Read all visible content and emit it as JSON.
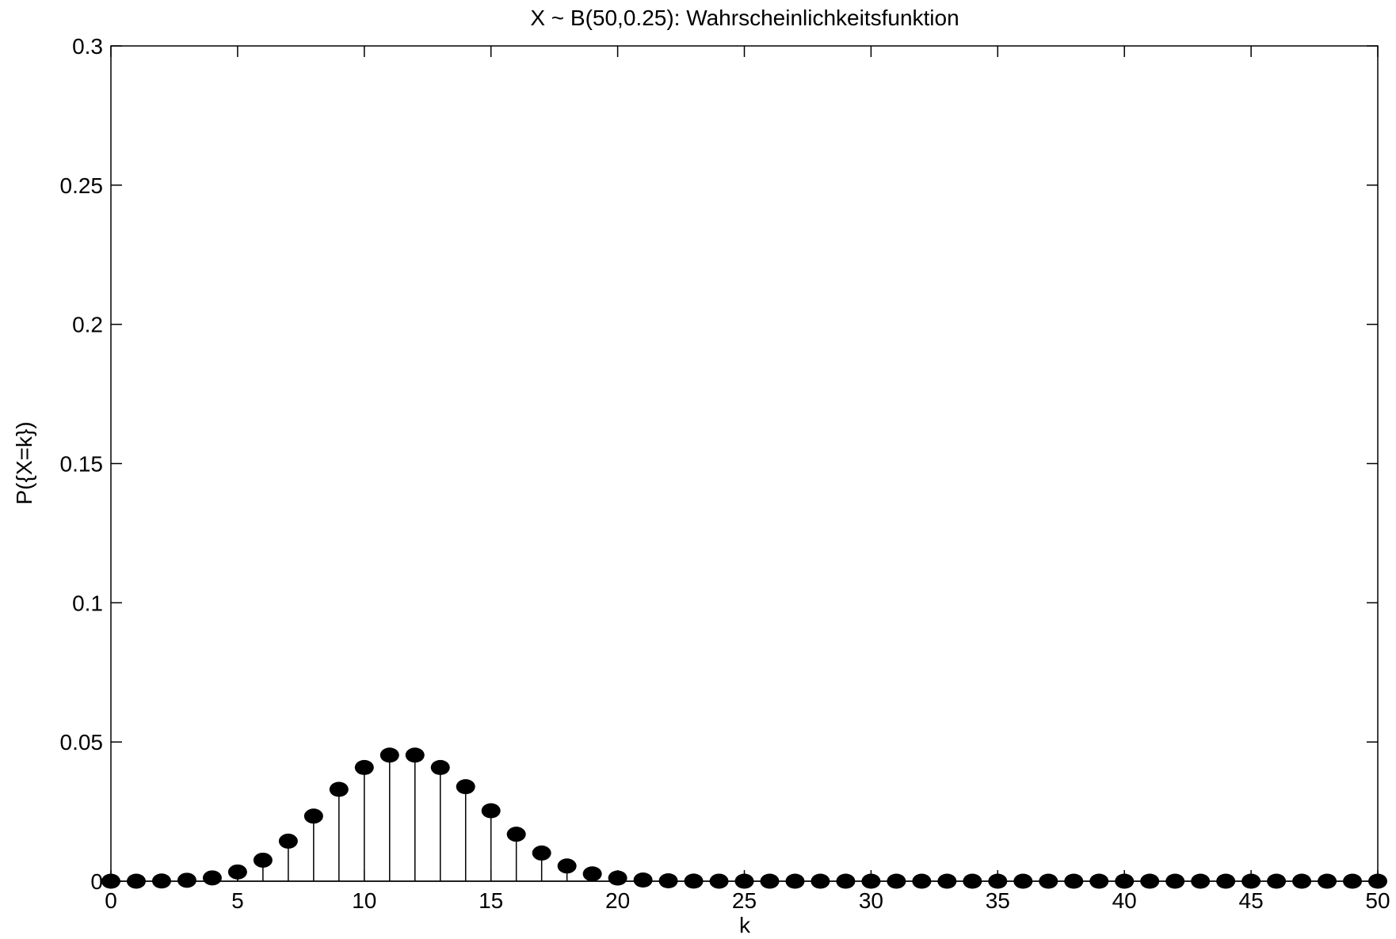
{
  "chart_data": {
    "type": "stem",
    "title": "X ~ B(50,0.25): Wahrscheinlichkeitsfunktion",
    "xlabel": "k",
    "ylabel": "P({X=k})",
    "xlim": [
      0,
      50
    ],
    "ylim": [
      0,
      0.3
    ],
    "xticks": [
      0,
      5,
      10,
      15,
      20,
      25,
      30,
      35,
      40,
      45,
      50
    ],
    "yticks": [
      0,
      0.05,
      0.1,
      0.15,
      0.2,
      0.25,
      0.3
    ],
    "ytick_labels": [
      "0",
      "0.05",
      "0.1",
      "0.15",
      "0.2",
      "0.25",
      "0.3"
    ],
    "grid": false,
    "marker": "filled-circle",
    "color": "#000000",
    "x": [
      0,
      1,
      2,
      3,
      4,
      5,
      6,
      7,
      8,
      9,
      10,
      11,
      12,
      13,
      14,
      15,
      16,
      17,
      18,
      19,
      20,
      21,
      22,
      23,
      24,
      25,
      26,
      27,
      28,
      29,
      30,
      31,
      32,
      33,
      34,
      35,
      36,
      37,
      38,
      39,
      40,
      41,
      42,
      43,
      44,
      45,
      46,
      47,
      48,
      49,
      50
    ],
    "y": [
      6e-07,
      9e-06,
      6.76e-05,
      0.0003305,
      0.0011843,
      0.0033159,
      0.0075516,
      0.0143829,
      0.0233722,
      0.032989,
      0.0408463,
      0.0452914,
      0.0452914,
      0.0408463,
      0.0339418,
      0.0253001,
      0.0168668,
      0.0101201,
      0.0054576,
      0.0026329,
      0.0011308,
      0.0004308,
      0.0001448,
      4.3e-05,
      1.12e-05,
      2.6e-06,
      5e-07,
      1e-07,
      0,
      0,
      0,
      0,
      0,
      0,
      0,
      0,
      0,
      0,
      0,
      0,
      0,
      0,
      0,
      0,
      0,
      0,
      0,
      0,
      0,
      0,
      0
    ]
  }
}
